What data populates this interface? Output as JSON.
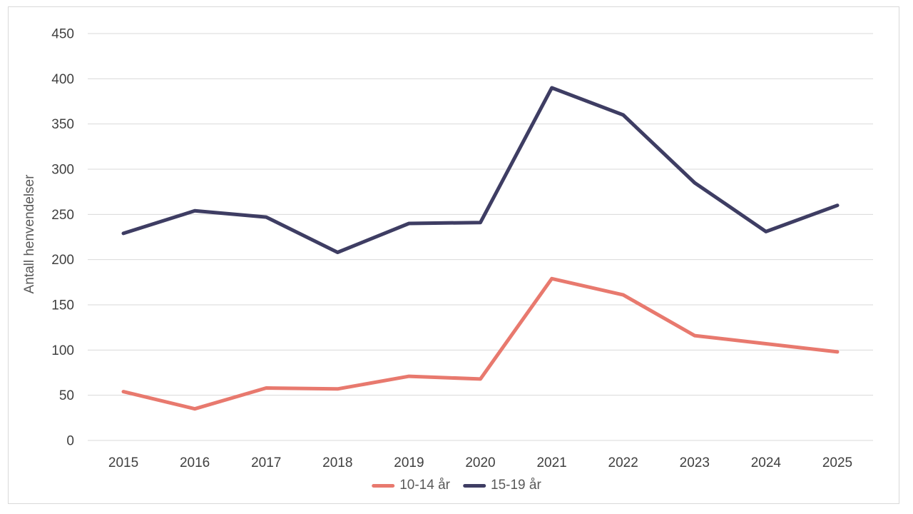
{
  "chart_data": {
    "type": "line",
    "title": "",
    "xlabel": "",
    "ylabel": "Antall henvendelser",
    "x": [
      "2015",
      "2016",
      "2017",
      "2018",
      "2019",
      "2020",
      "2021",
      "2022",
      "2023",
      "2024",
      "2025"
    ],
    "series": [
      {
        "name": "10-14 år",
        "color": "#E8796E",
        "values": [
          54,
          35,
          58,
          57,
          71,
          68,
          179,
          161,
          116,
          107,
          98
        ]
      },
      {
        "name": "15-19 år",
        "color": "#3E3D63",
        "values": [
          229,
          254,
          247,
          208,
          240,
          241,
          390,
          360,
          285,
          231,
          260
        ]
      }
    ],
    "ylim": [
      0,
      450
    ],
    "ytick_step": 50,
    "grid": true,
    "legend_position": "bottom-center"
  },
  "style": {
    "background": "#FFFFFF",
    "border_color": "#D9D9D9",
    "gridline_color": "#D9D9D9",
    "tick_label_color": "#404040",
    "axis_title_color": "#595959",
    "legend_text_color": "#595959"
  }
}
